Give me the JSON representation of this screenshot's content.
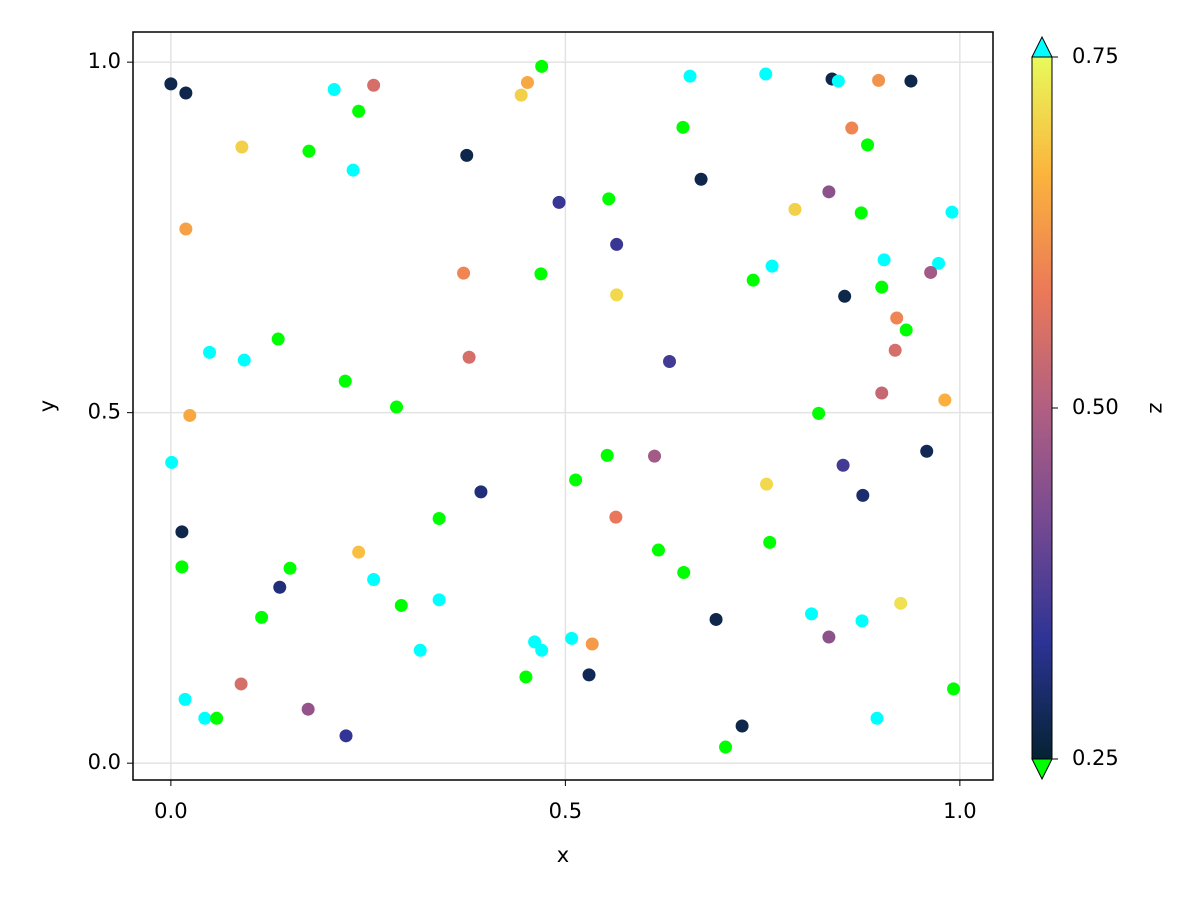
{
  "chart_data": {
    "type": "scatter",
    "xlabel": "x",
    "ylabel": "y",
    "colorbar_label": "z",
    "xlim": [
      -0.048,
      1.042
    ],
    "ylim": [
      -0.024,
      1.043
    ],
    "xticks": [
      {
        "value": 0,
        "label": "0.0"
      },
      0.5,
      {
        "value": 1,
        "label": "1.0"
      }
    ],
    "yticks": [
      {
        "value": 0,
        "label": "0.0"
      },
      0.5,
      {
        "value": 1,
        "label": "1.0"
      }
    ],
    "zlim": [
      0.25,
      0.75
    ],
    "zticks": [
      0.25,
      {
        "value": 0.5,
        "label": "0.50"
      },
      0.75
    ],
    "colormap": [
      "#042333",
      "#2c3395",
      "#744992",
      "#b15f82",
      "#eb7958",
      "#fbb43d",
      "#e8fa5b"
    ],
    "lowclip": "#00ff00",
    "highclip": "#00ffff",
    "grid": true,
    "x": [
      0.0,
      0.019,
      0.207,
      0.257,
      0.47,
      0.452,
      0.444,
      0.658,
      0.754,
      0.838,
      0.846,
      0.897,
      0.938,
      0.238,
      0.09,
      0.175,
      0.375,
      0.231,
      0.649,
      0.863,
      0.883,
      0.672,
      0.834,
      0.492,
      0.555,
      0.791,
      0.875,
      0.99,
      0.019,
      0.565,
      0.371,
      0.469,
      0.738,
      0.762,
      0.904,
      0.973,
      0.963,
      0.565,
      0.854,
      0.901,
      0.92,
      0.932,
      0.918,
      0.049,
      0.093,
      0.136,
      0.378,
      0.632,
      0.221,
      0.286,
      0.024,
      0.901,
      0.981,
      0.821,
      0.001,
      0.553,
      0.613,
      0.958,
      0.852,
      0.393,
      0.513,
      0.755,
      0.877,
      0.014,
      0.34,
      0.564,
      0.238,
      0.618,
      0.759,
      0.014,
      0.151,
      0.65,
      0.257,
      0.138,
      0.292,
      0.34,
      0.115,
      0.812,
      0.925,
      0.691,
      0.876,
      0.834,
      0.461,
      0.47,
      0.508,
      0.534,
      0.316,
      0.45,
      0.53,
      0.089,
      0.992,
      0.018,
      0.043,
      0.058,
      0.174,
      0.895,
      0.222,
      0.724,
      0.703
    ],
    "y": [
      0.969,
      0.956,
      0.961,
      0.967,
      0.994,
      0.971,
      0.953,
      0.98,
      0.983,
      0.976,
      0.973,
      0.974,
      0.973,
      0.93,
      0.879,
      0.873,
      0.867,
      0.846,
      0.907,
      0.906,
      0.882,
      0.833,
      0.815,
      0.8,
      0.805,
      0.79,
      0.785,
      0.786,
      0.762,
      0.74,
      0.699,
      0.698,
      0.689,
      0.709,
      0.718,
      0.713,
      0.7,
      0.668,
      0.666,
      0.679,
      0.635,
      0.618,
      0.589,
      0.586,
      0.575,
      0.605,
      0.579,
      0.573,
      0.545,
      0.508,
      0.496,
      0.528,
      0.518,
      0.499,
      0.429,
      0.439,
      0.438,
      0.445,
      0.425,
      0.387,
      0.404,
      0.398,
      0.382,
      0.33,
      0.349,
      0.351,
      0.301,
      0.304,
      0.315,
      0.28,
      0.278,
      0.272,
      0.262,
      0.251,
      0.225,
      0.233,
      0.208,
      0.213,
      0.228,
      0.205,
      0.203,
      0.18,
      0.173,
      0.161,
      0.178,
      0.17,
      0.161,
      0.123,
      0.126,
      0.113,
      0.106,
      0.091,
      0.064,
      0.064,
      0.077,
      0.064,
      0.039,
      0.053,
      0.023
    ],
    "z": [
      0.27,
      0.27,
      0.8,
      0.55,
      0.2,
      0.65,
      0.7,
      0.8,
      0.8,
      0.27,
      0.8,
      0.62,
      0.27,
      0.2,
      0.7,
      0.2,
      0.27,
      0.8,
      0.2,
      0.6,
      0.2,
      0.27,
      0.45,
      0.35,
      0.2,
      0.7,
      0.2,
      0.8,
      0.64,
      0.35,
      0.6,
      0.2,
      0.2,
      0.8,
      0.8,
      0.8,
      0.48,
      0.71,
      0.27,
      0.2,
      0.6,
      0.2,
      0.55,
      0.8,
      0.8,
      0.2,
      0.55,
      0.36,
      0.2,
      0.2,
      0.65,
      0.53,
      0.66,
      0.2,
      0.8,
      0.2,
      0.48,
      0.28,
      0.36,
      0.31,
      0.2,
      0.71,
      0.3,
      0.27,
      0.2,
      0.58,
      0.68,
      0.2,
      0.2,
      0.2,
      0.2,
      0.2,
      0.8,
      0.31,
      0.2,
      0.8,
      0.2,
      0.8,
      0.72,
      0.27,
      0.8,
      0.45,
      0.8,
      0.8,
      0.8,
      0.63,
      0.8,
      0.2,
      0.28,
      0.55,
      0.2,
      0.8,
      0.8,
      0.2,
      0.46,
      0.8,
      0.34,
      0.27,
      0.2
    ]
  }
}
